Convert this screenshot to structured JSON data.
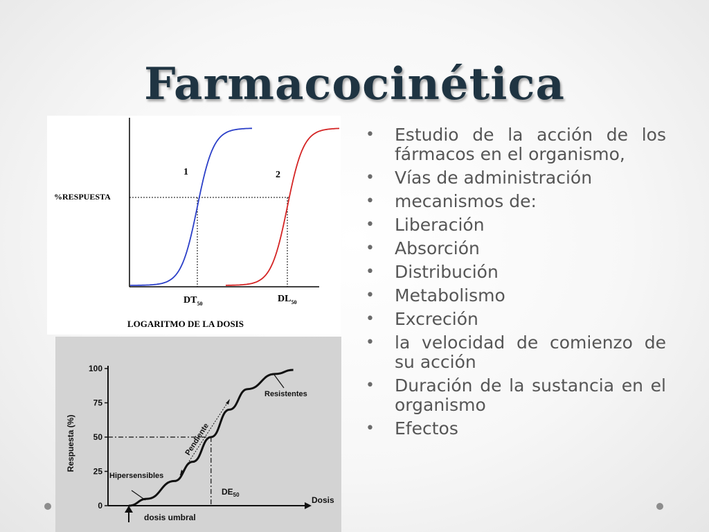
{
  "title": "Farmacocinética",
  "bullets": [
    "Estudio de la acción de los fármacos en el organismo,",
    "Vías de administración",
    "mecanismos de:",
    "Liberación",
    "Absorción",
    "Distribución",
    "Metabolismo",
    "Excreción",
    "la velocidad de comienzo de su acción",
    "Duración de la sustancia en el organismo",
    "Efectos"
  ],
  "chart_data": [
    {
      "type": "line",
      "ylabel": "%RESPUESTA",
      "xlabel": "LOGARITMO DE LA DOSIS",
      "colors": {
        "curve1": "#2b3fc8",
        "curve2": "#d42424",
        "axes": "#000000"
      },
      "grid": false,
      "series": [
        {
          "name": "1",
          "shape": "sigmoid",
          "midpoint_label": "DT50",
          "color": "#2b3fc8"
        },
        {
          "name": "2",
          "shape": "sigmoid",
          "midpoint_label": "DL50",
          "color": "#d42424"
        }
      ],
      "annotations": {
        "marker1": {
          "main": "DT",
          "sub": "50"
        },
        "marker2": {
          "main": "DL",
          "sub": "50"
        }
      }
    },
    {
      "type": "line",
      "ylabel": "Respuesta (%)",
      "xlabel": "Dosis",
      "yticks": [
        0,
        25,
        50,
        75,
        100
      ],
      "ylim": [
        0,
        100
      ],
      "grid": false,
      "colors": {
        "curve": "#111111",
        "background": "#d3d3d3"
      },
      "series": [
        {
          "shape": "sigmoid",
          "points": [
            [
              0,
              0
            ],
            [
              10,
              5
            ],
            [
              25,
              18
            ],
            [
              35,
              32
            ],
            [
              45,
              50
            ],
            [
              55,
              70
            ],
            [
              65,
              85
            ],
            [
              80,
              96
            ],
            [
              90,
              99
            ]
          ]
        }
      ],
      "annotations": {
        "hipersensibles": "Hipersensibles",
        "pendiente": "Pendiente",
        "resistentes": "Resistentes",
        "de50": {
          "main": "DE",
          "sub": "50"
        },
        "dosis_umbral": "dosis umbral"
      }
    }
  ]
}
